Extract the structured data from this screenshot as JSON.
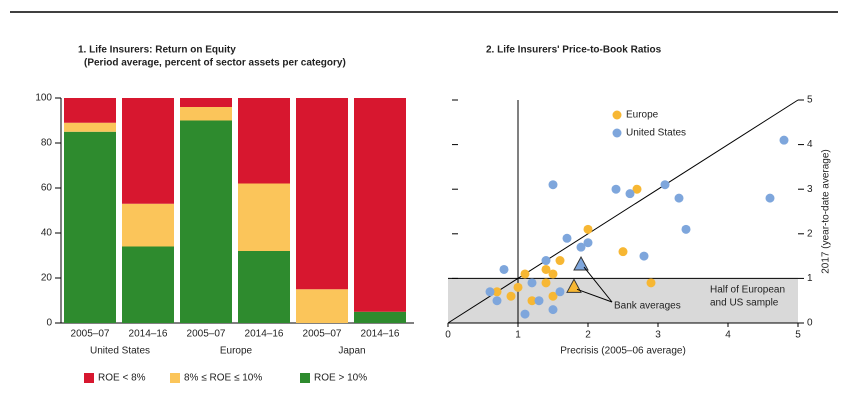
{
  "chart_data": [
    {
      "type": "stacked-bar",
      "title": "1. Life Insurers: Return on Equity",
      "subtitle": "(Period average, percent of sector assets per category)",
      "categories": [
        "2005–07",
        "2014–16",
        "2005–07",
        "2014–16",
        "2005–07",
        "2014–16"
      ],
      "groups": [
        "United States",
        "Europe",
        "Japan"
      ],
      "series": [
        {
          "name": "ROE < 8%",
          "color": "#d7172f",
          "values": [
            11,
            47,
            4,
            38,
            85,
            95
          ]
        },
        {
          "name": "8% ≤ ROE ≤ 10%",
          "color": "#fbc55a",
          "values": [
            4,
            19,
            6,
            30,
            15,
            0
          ]
        },
        {
          "name": "ROE > 10%",
          "color": "#2e8b2e",
          "values": [
            85,
            34,
            90,
            32,
            0,
            5
          ]
        }
      ],
      "ylim": [
        0,
        100
      ],
      "yticks": [
        0,
        20,
        40,
        60,
        80,
        100
      ]
    },
    {
      "type": "scatter",
      "title": "2. Life Insurers' Price-to-Book Ratios",
      "xlabel": "Precrisis (2005–06 average)",
      "ylabel": "2017 (year-to-date average)",
      "xlim": [
        0,
        5
      ],
      "ylim": [
        0,
        5
      ],
      "xticks": [
        0,
        1,
        2,
        3,
        4,
        5
      ],
      "yticks": [
        0,
        1,
        2,
        3,
        4,
        5
      ],
      "vlines": [
        1
      ],
      "hlines": [
        1
      ],
      "series": [
        {
          "name": "Europe",
          "color": "#f7b733",
          "x": [
            2.7,
            2.5,
            2.0,
            1.6,
            1.4,
            1.1,
            0.9,
            1.2,
            1.4,
            2.9,
            1.5,
            0.7,
            1.0,
            1.5
          ],
          "y": [
            3.0,
            1.6,
            2.1,
            1.4,
            1.2,
            1.1,
            0.6,
            0.5,
            0.9,
            0.9,
            0.6,
            0.7,
            0.8,
            1.1
          ]
        },
        {
          "name": "United States",
          "color": "#7ea6dc",
          "x": [
            4.8,
            4.6,
            3.1,
            2.4,
            2.6,
            3.3,
            1.5,
            3.4,
            2.8,
            2.0,
            1.7,
            1.9,
            0.8,
            0.6,
            0.7,
            1.1,
            1.3,
            1.5,
            1.6,
            1.2,
            1.4
          ],
          "y": [
            4.1,
            2.8,
            3.1,
            3.0,
            2.9,
            2.8,
            3.1,
            2.1,
            1.5,
            1.8,
            1.9,
            1.7,
            1.2,
            0.7,
            0.5,
            0.2,
            0.5,
            0.3,
            0.7,
            0.9,
            1.4
          ]
        }
      ],
      "bank_averages": {
        "label": "Bank averages",
        "x": [
          1.8,
          1.9
        ],
        "y": [
          0.8,
          1.3
        ],
        "colors": [
          "#f7b733",
          "#7ea6dc"
        ]
      },
      "annotation": [
        "Half of European",
        "and US sample"
      ]
    }
  ]
}
